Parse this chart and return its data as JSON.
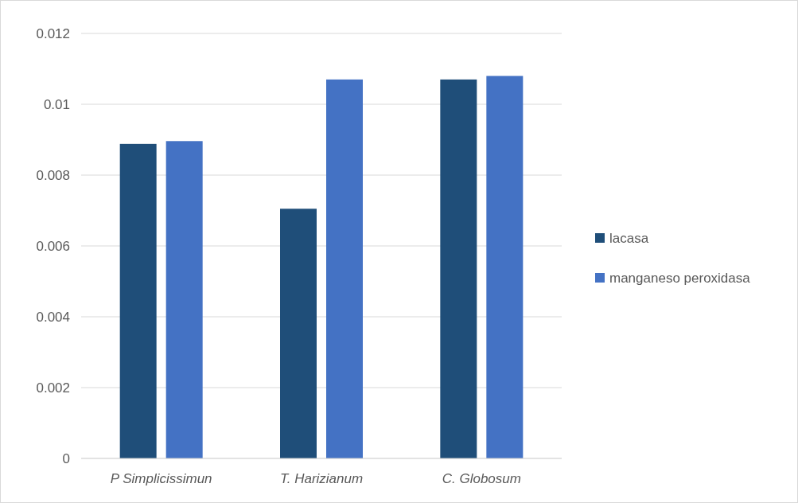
{
  "chart_data": {
    "type": "bar",
    "categories": [
      "P Simplicissimun",
      "T. Harizianum",
      "C. Globosum"
    ],
    "series": [
      {
        "name": "lacasa",
        "color": "#1f4e79",
        "values": [
          0.00888,
          0.00705,
          0.0107
        ]
      },
      {
        "name": "manganeso peroxidasa",
        "color": "#4472c4",
        "values": [
          0.00896,
          0.0107,
          0.0108
        ]
      }
    ],
    "ylim": [
      0,
      0.012
    ],
    "yticks": [
      0,
      0.002,
      0.004,
      0.006,
      0.008,
      0.01,
      0.012
    ],
    "grid": "y",
    "legend": "right"
  }
}
